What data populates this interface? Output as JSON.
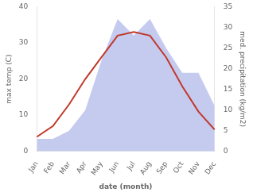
{
  "chart_data": {
    "type": "line",
    "categories": [
      "Jan",
      "Feb",
      "Mar",
      "Apr",
      "May",
      "Jun",
      "Jul",
      "Aug",
      "Sep",
      "Oct",
      "Nov",
      "Dec"
    ],
    "xlabel": "date (month)",
    "ylabel": "max temp (C)",
    "y2label": "med. precipitation (kg/m2)",
    "series": [
      {
        "type": "area",
        "axis": "y2",
        "color": "#c5caef",
        "values": [
          3,
          3,
          5,
          10,
          22,
          32,
          28,
          32,
          25,
          19,
          19,
          11
        ]
      },
      {
        "type": "line",
        "color": "#c0392b",
        "values": [
          4,
          7,
          13,
          20,
          26,
          32,
          33,
          32,
          26,
          18,
          11,
          6
        ]
      }
    ],
    "ylim": [
      0,
      40
    ],
    "yticks": [
      0,
      10,
      20,
      30,
      40
    ],
    "y2lim": [
      0,
      35
    ],
    "y2ticks": [
      0,
      5,
      10,
      15,
      20,
      25,
      30,
      35
    ],
    "grid": false
  }
}
